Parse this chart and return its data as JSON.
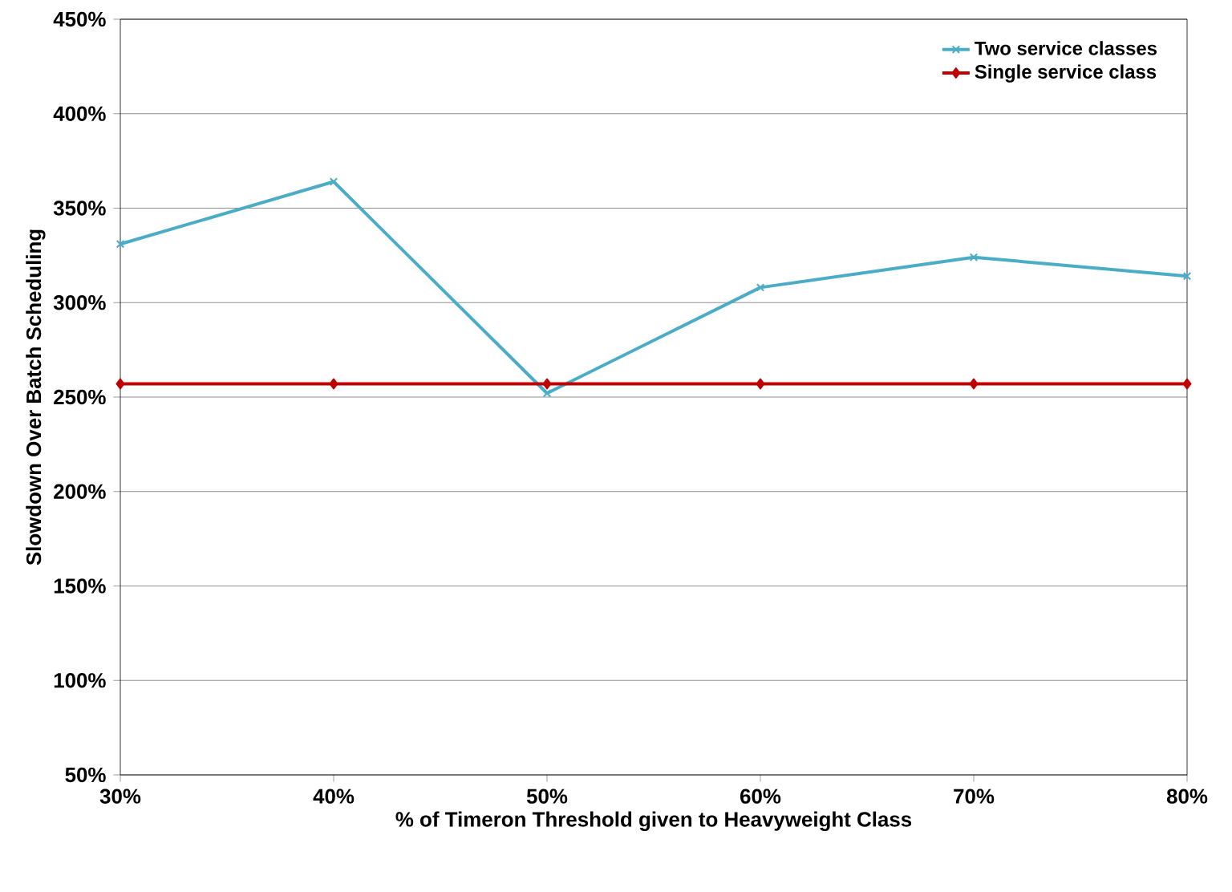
{
  "chart_data": {
    "type": "line",
    "xlabel": "% of Timeron Threshold  given to Heavyweight Class",
    "ylabel": "Slowdown Over Batch Scheduling",
    "categories": [
      "30%",
      "40%",
      "50%",
      "60%",
      "70%",
      "80%"
    ],
    "series": [
      {
        "name": "Two service classes",
        "color": "#4bacc6",
        "marker": "cross",
        "values": [
          331,
          364,
          252,
          308,
          324,
          314
        ]
      },
      {
        "name": "Single service class",
        "color": "#c00000",
        "marker": "diamond",
        "values": [
          257,
          257,
          257,
          257,
          257,
          257
        ]
      }
    ],
    "ylim": [
      50,
      450
    ],
    "yticks": [
      {
        "value": 50,
        "label": "50%"
      },
      {
        "value": 100,
        "label": "100%"
      },
      {
        "value": 150,
        "label": "150%"
      },
      {
        "value": 200,
        "label": "200%"
      },
      {
        "value": 250,
        "label": "250%"
      },
      {
        "value": 300,
        "label": "300%"
      },
      {
        "value": 350,
        "label": "350%"
      },
      {
        "value": 400,
        "label": "400%"
      },
      {
        "value": 450,
        "label": "450%"
      }
    ],
    "grid": "y",
    "legend": "top right",
    "line_style": "solid"
  }
}
